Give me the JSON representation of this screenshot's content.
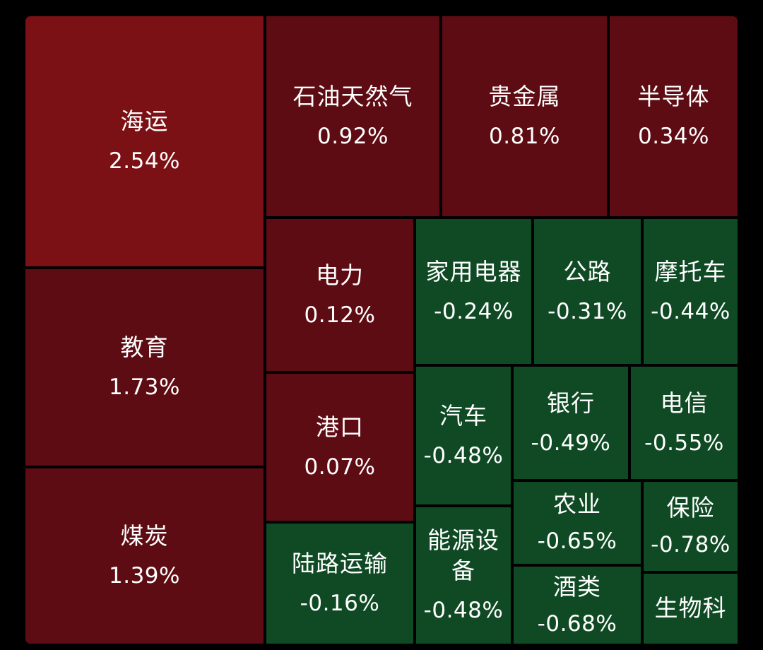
{
  "chart_data": {
    "type": "treemap",
    "colors": {
      "strong_up": "#7B1015",
      "up": "#5E0C13",
      "down": "#0F4A24",
      "background": "#000000"
    },
    "tiles": [
      {
        "name": "海运",
        "value": "2.54%"
      },
      {
        "name": "教育",
        "value": "1.73%"
      },
      {
        "name": "煤炭",
        "value": "1.39%"
      },
      {
        "name": "石油天然气",
        "value": "0.92%"
      },
      {
        "name": "贵金属",
        "value": "0.81%"
      },
      {
        "name": "半导体",
        "value": "0.34%"
      },
      {
        "name": "电力",
        "value": "0.12%"
      },
      {
        "name": "港口",
        "value": "0.07%"
      },
      {
        "name": "陆路运输",
        "value": "-0.16%"
      },
      {
        "name": "家用电器",
        "value": "-0.24%"
      },
      {
        "name": "公路",
        "value": "-0.31%"
      },
      {
        "name": "摩托车",
        "value": "-0.44%"
      },
      {
        "name": "汽车",
        "value": "-0.48%"
      },
      {
        "name": "银行",
        "value": "-0.49%"
      },
      {
        "name": "电信",
        "value": "-0.55%"
      },
      {
        "name": "能源设备",
        "value": "-0.48%"
      },
      {
        "name": "农业",
        "value": "-0.65%"
      },
      {
        "name": "保险",
        "value": "-0.78%"
      },
      {
        "name": "酒类",
        "value": "-0.68%"
      },
      {
        "name": "生物科",
        "value": ""
      }
    ]
  }
}
